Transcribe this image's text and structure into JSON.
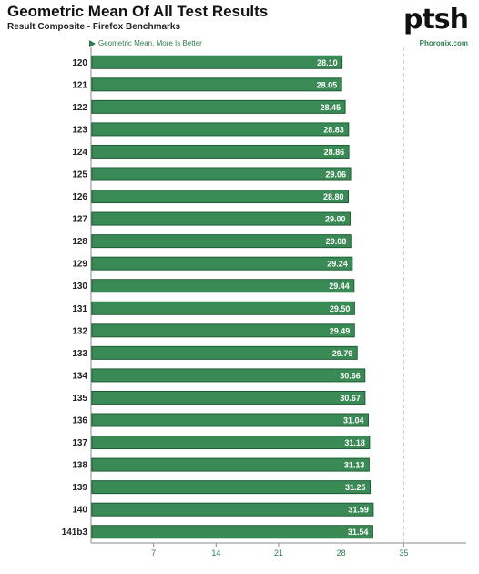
{
  "header": {
    "title": "Geometric Mean Of All Test Results",
    "subtitle": "Result Composite - Firefox Benchmarks",
    "logo": "ptsh",
    "legend_text": "Geometric Mean, More Is Better",
    "source": "Phoronix.com"
  },
  "colors": {
    "bar": "#3a8a56",
    "bar_edge": "#1f5c36",
    "accent": "#2e7d4f"
  },
  "chart_data": {
    "type": "bar",
    "orientation": "horizontal",
    "categories": [
      "120",
      "121",
      "122",
      "123",
      "124",
      "125",
      "126",
      "127",
      "128",
      "129",
      "130",
      "131",
      "132",
      "133",
      "134",
      "135",
      "136",
      "137",
      "138",
      "139",
      "140",
      "141b3"
    ],
    "values": [
      28.1,
      28.05,
      28.45,
      28.83,
      28.86,
      29.06,
      28.8,
      29.0,
      29.08,
      29.24,
      29.44,
      29.5,
      29.49,
      29.79,
      30.66,
      30.67,
      31.04,
      31.18,
      31.13,
      31.25,
      31.59,
      31.54
    ],
    "value_labels": [
      "28.10",
      "28.05",
      "28.45",
      "28.83",
      "28.86",
      "29.06",
      "28.80",
      "29.00",
      "29.08",
      "29.24",
      "29.44",
      "29.50",
      "29.49",
      "29.79",
      "30.66",
      "30.67",
      "31.04",
      "31.18",
      "31.13",
      "31.25",
      "31.59",
      "31.54"
    ],
    "xticks": [
      7,
      14,
      21,
      28,
      35
    ],
    "xtick_labels": [
      "7",
      "14",
      "21",
      "28",
      "35"
    ],
    "xlim": [
      0,
      42
    ],
    "grid": "dashed-vertical"
  }
}
